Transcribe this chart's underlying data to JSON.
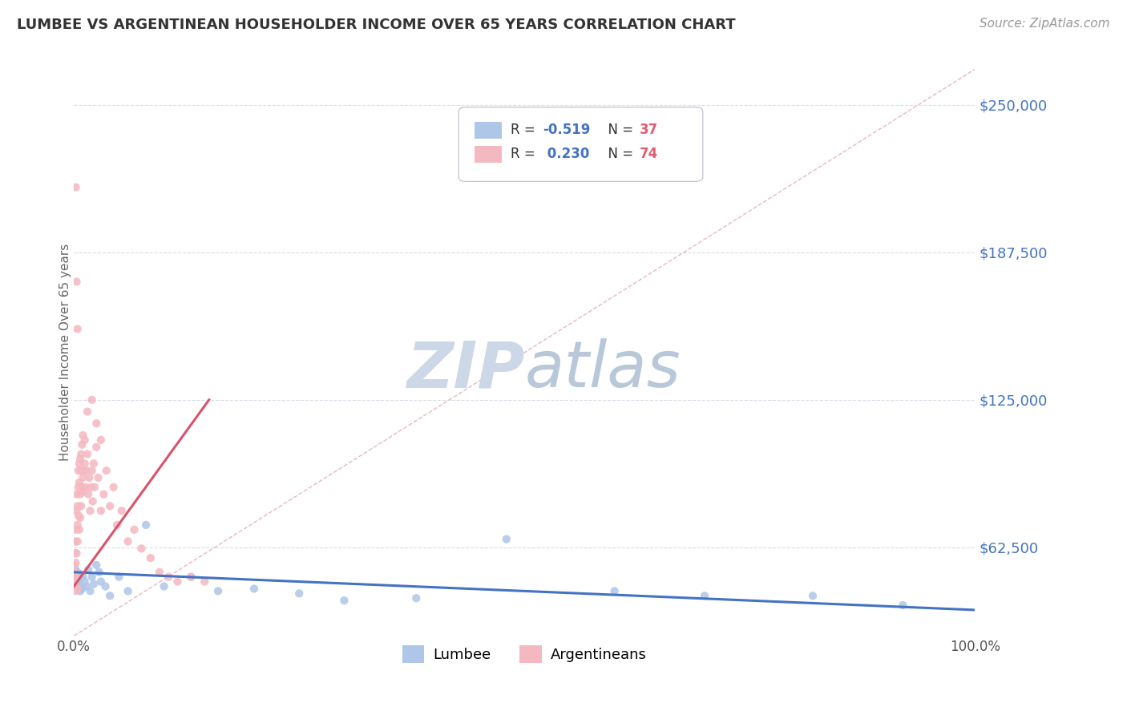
{
  "title": "LUMBEE VS ARGENTINEAN HOUSEHOLDER INCOME OVER 65 YEARS CORRELATION CHART",
  "source": "Source: ZipAtlas.com",
  "ylabel": "Householder Income Over 65 years",
  "xlim": [
    0.0,
    1.0
  ],
  "ylim": [
    25000,
    265000
  ],
  "yticks": [
    62500,
    125000,
    187500,
    250000
  ],
  "ytick_labels": [
    "$62,500",
    "$125,000",
    "$187,500",
    "$250,000"
  ],
  "xtick_labels": [
    "0.0%",
    "100.0%"
  ],
  "lumbee_R": -0.519,
  "lumbee_N": 37,
  "argentinean_R": 0.23,
  "argentinean_N": 74,
  "lumbee_color": "#aec6e8",
  "argentinean_color": "#f4b8c1",
  "lumbee_line_color": "#4472c4",
  "argentinean_line_color": "#d9536a",
  "watermark_zip_color": "#ccd8e8",
  "watermark_atlas_color": "#b8c8d8",
  "legend_R_color": "#4472c4",
  "legend_N_color": "#e05c6e",
  "diag_line_color": "#e8b8c0",
  "grid_color": "#d8dde8",
  "lumbee_line_x0": 0.0,
  "lumbee_line_y0": 52000,
  "lumbee_line_x1": 1.0,
  "lumbee_line_y1": 36000,
  "arg_line_x0": 0.0,
  "arg_line_y0": 46000,
  "arg_line_x1": 0.15,
  "arg_line_y1": 125000
}
